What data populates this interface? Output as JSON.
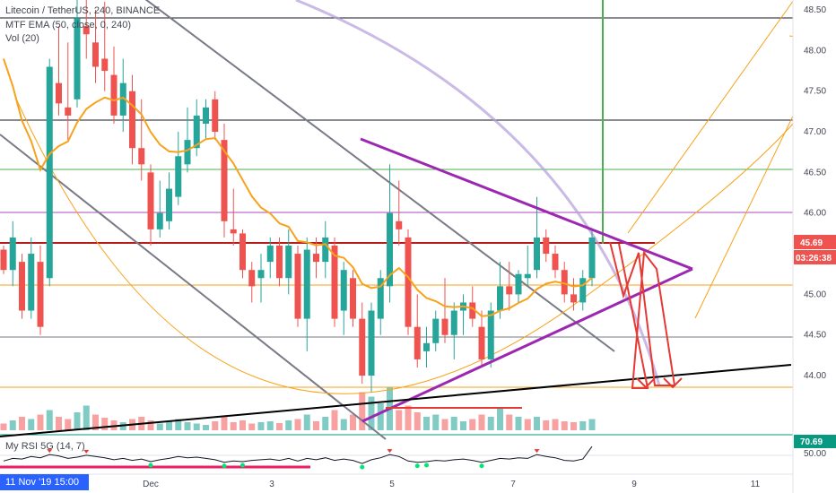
{
  "legend": {
    "line1": "Litecoin / TetherUS, 240, BINANCE",
    "line2": "MTF EMA (50, close, 0, 240)",
    "line3": "Vol (20)"
  },
  "rsi_label": "My RSI 5G (14, 7)",
  "crosshair_date": "11 Nov '19  15:00",
  "price_tag": {
    "label": "45.69",
    "color": "#ef5350"
  },
  "countdown_tag": {
    "label": "03:26:38",
    "color": "#ef5350"
  },
  "rsi_tag": {
    "label": "70.69",
    "color": "#089981"
  },
  "colors": {
    "up": "#26a69a",
    "down": "#ef5350",
    "ema": "#f7a21b",
    "triangle": "#9c27b0",
    "projection": "#e53935",
    "trend": "#000000",
    "arc": "#b39ddb"
  },
  "chart_data": {
    "type": "candlestick",
    "title": "Litecoin / TetherUS, 240, BINANCE",
    "y_axis": {
      "ticks": [
        44.0,
        44.5,
        45.0,
        45.5,
        46.0,
        46.5,
        47.0,
        47.5,
        48.0,
        48.5
      ],
      "range": [
        43.35,
        48.6
      ]
    },
    "rsi_axis": {
      "ticks": [
        50.0
      ],
      "last": 70.69
    },
    "x_axis": {
      "ticks": [
        "Dec",
        "3",
        "5",
        "7",
        "9",
        "11"
      ]
    },
    "candles": [
      [
        45.55,
        45.6,
        45.25,
        45.3
      ],
      [
        45.3,
        45.9,
        45.1,
        45.7
      ],
      [
        45.4,
        45.5,
        44.7,
        44.8
      ],
      [
        44.8,
        45.7,
        44.7,
        45.5
      ],
      [
        45.4,
        45.6,
        44.5,
        44.6
      ],
      [
        45.2,
        47.9,
        45.1,
        47.8
      ],
      [
        47.6,
        48.3,
        47.2,
        47.35
      ],
      [
        47.3,
        48.1,
        46.9,
        47.2
      ],
      [
        47.4,
        48.7,
        47.3,
        48.4
      ],
      [
        48.3,
        48.65,
        47.9,
        48.2
      ],
      [
        48.1,
        48.5,
        47.6,
        47.8
      ],
      [
        47.9,
        48.6,
        47.5,
        47.75
      ],
      [
        47.7,
        48.05,
        47.1,
        47.2
      ],
      [
        47.2,
        47.9,
        47.0,
        47.6
      ],
      [
        47.5,
        47.7,
        46.6,
        46.8
      ],
      [
        46.8,
        47.4,
        46.4,
        46.6
      ],
      [
        46.5,
        46.6,
        45.6,
        45.8
      ],
      [
        45.8,
        46.4,
        45.7,
        46.0
      ],
      [
        45.9,
        46.5,
        45.8,
        46.3
      ],
      [
        46.2,
        47.0,
        46.1,
        46.7
      ],
      [
        46.6,
        47.3,
        46.5,
        46.9
      ],
      [
        46.8,
        47.4,
        46.7,
        47.2
      ],
      [
        47.1,
        47.4,
        46.9,
        47.3
      ],
      [
        47.4,
        47.5,
        46.9,
        47.0
      ],
      [
        46.9,
        47.1,
        45.7,
        45.9
      ],
      [
        45.8,
        46.3,
        45.6,
        45.75
      ],
      [
        45.75,
        45.8,
        45.2,
        45.3
      ],
      [
        45.3,
        45.4,
        44.9,
        45.1
      ],
      [
        45.2,
        45.5,
        44.9,
        45.3
      ],
      [
        45.4,
        45.7,
        45.2,
        45.6
      ],
      [
        45.6,
        45.7,
        45.1,
        45.2
      ],
      [
        45.2,
        45.8,
        45.0,
        45.6
      ],
      [
        45.5,
        45.6,
        44.6,
        44.7
      ],
      [
        44.7,
        45.7,
        44.3,
        45.55
      ],
      [
        45.5,
        45.7,
        45.2,
        45.4
      ],
      [
        45.4,
        45.9,
        45.2,
        45.7
      ],
      [
        45.6,
        45.7,
        44.6,
        44.7
      ],
      [
        44.8,
        45.4,
        44.5,
        45.3
      ],
      [
        45.2,
        45.3,
        44.6,
        44.7
      ],
      [
        44.7,
        44.9,
        43.9,
        44.0
      ],
      [
        44.0,
        44.9,
        43.8,
        44.8
      ],
      [
        44.7,
        45.3,
        44.5,
        45.2
      ],
      [
        45.1,
        46.6,
        44.9,
        46.0
      ],
      [
        45.9,
        46.4,
        45.6,
        45.8
      ],
      [
        45.7,
        45.8,
        44.5,
        44.6
      ],
      [
        44.6,
        45.0,
        44.1,
        44.2
      ],
      [
        44.3,
        44.6,
        44.1,
        44.4
      ],
      [
        44.4,
        44.8,
        44.3,
        44.7
      ],
      [
        44.7,
        45.2,
        44.4,
        44.5
      ],
      [
        44.5,
        44.9,
        44.2,
        44.8
      ],
      [
        44.8,
        45.0,
        44.5,
        44.9
      ],
      [
        44.9,
        45.1,
        44.6,
        44.7
      ],
      [
        44.6,
        44.8,
        44.1,
        44.2
      ],
      [
        44.2,
        44.9,
        44.1,
        44.8
      ],
      [
        44.8,
        45.4,
        44.7,
        45.1
      ],
      [
        45.1,
        45.4,
        44.8,
        45.0
      ],
      [
        45.0,
        45.3,
        44.9,
        45.25
      ],
      [
        45.2,
        45.6,
        45.1,
        45.25
      ],
      [
        45.3,
        46.2,
        45.2,
        45.7
      ],
      [
        45.7,
        45.8,
        45.4,
        45.5
      ],
      [
        45.5,
        45.6,
        45.2,
        45.3
      ],
      [
        45.3,
        45.4,
        44.9,
        45.0
      ],
      [
        45.0,
        45.2,
        44.8,
        44.9
      ],
      [
        44.9,
        45.3,
        44.8,
        45.2
      ],
      [
        45.2,
        45.8,
        45.1,
        45.7
      ]
    ],
    "volume": [
      [
        0.15,
        "d"
      ],
      [
        0.22,
        "u"
      ],
      [
        0.3,
        "d"
      ],
      [
        0.25,
        "u"
      ],
      [
        0.35,
        "d"
      ],
      [
        0.45,
        "u"
      ],
      [
        0.3,
        "d"
      ],
      [
        0.25,
        "d"
      ],
      [
        0.4,
        "u"
      ],
      [
        0.55,
        "u"
      ],
      [
        0.35,
        "d"
      ],
      [
        0.28,
        "d"
      ],
      [
        0.22,
        "d"
      ],
      [
        0.18,
        "u"
      ],
      [
        0.25,
        "d"
      ],
      [
        0.3,
        "d"
      ],
      [
        0.22,
        "d"
      ],
      [
        0.15,
        "u"
      ],
      [
        0.2,
        "u"
      ],
      [
        0.25,
        "u"
      ],
      [
        0.18,
        "u"
      ],
      [
        0.15,
        "u"
      ],
      [
        0.12,
        "u"
      ],
      [
        0.2,
        "d"
      ],
      [
        0.3,
        "d"
      ],
      [
        0.18,
        "d"
      ],
      [
        0.22,
        "d"
      ],
      [
        0.15,
        "d"
      ],
      [
        0.18,
        "u"
      ],
      [
        0.2,
        "u"
      ],
      [
        0.16,
        "d"
      ],
      [
        0.22,
        "u"
      ],
      [
        0.25,
        "d"
      ],
      [
        0.35,
        "u"
      ],
      [
        0.2,
        "d"
      ],
      [
        0.3,
        "u"
      ],
      [
        0.45,
        "d"
      ],
      [
        0.25,
        "u"
      ],
      [
        0.35,
        "d"
      ],
      [
        0.85,
        "d"
      ],
      [
        0.75,
        "u"
      ],
      [
        0.6,
        "u"
      ],
      [
        0.95,
        "u"
      ],
      [
        0.45,
        "d"
      ],
      [
        0.55,
        "d"
      ],
      [
        0.4,
        "d"
      ],
      [
        0.3,
        "u"
      ],
      [
        0.35,
        "u"
      ],
      [
        0.25,
        "d"
      ],
      [
        0.3,
        "u"
      ],
      [
        0.2,
        "u"
      ],
      [
        0.25,
        "d"
      ],
      [
        0.35,
        "d"
      ],
      [
        0.3,
        "u"
      ],
      [
        0.5,
        "u"
      ],
      [
        0.35,
        "d"
      ],
      [
        0.3,
        "u"
      ],
      [
        0.25,
        "d"
      ],
      [
        0.3,
        "u"
      ],
      [
        0.22,
        "d"
      ],
      [
        0.25,
        "d"
      ],
      [
        0.2,
        "d"
      ],
      [
        0.18,
        "d"
      ],
      [
        0.2,
        "u"
      ],
      [
        0.25,
        "u"
      ]
    ],
    "rsi": [
      48,
      52,
      51,
      55,
      53,
      58,
      56,
      52,
      54,
      57,
      55,
      53,
      50,
      52,
      49,
      51,
      47,
      50,
      52,
      55,
      53,
      54,
      52,
      50,
      46,
      48,
      47,
      49,
      50,
      51,
      49,
      52,
      48,
      52,
      50,
      53,
      49,
      51,
      49,
      44,
      50,
      53,
      58,
      55,
      48,
      46,
      47,
      49,
      48,
      50,
      51,
      49,
      46,
      49,
      52,
      51,
      53,
      52,
      58,
      55,
      53,
      49,
      48,
      51,
      70.69
    ]
  }
}
